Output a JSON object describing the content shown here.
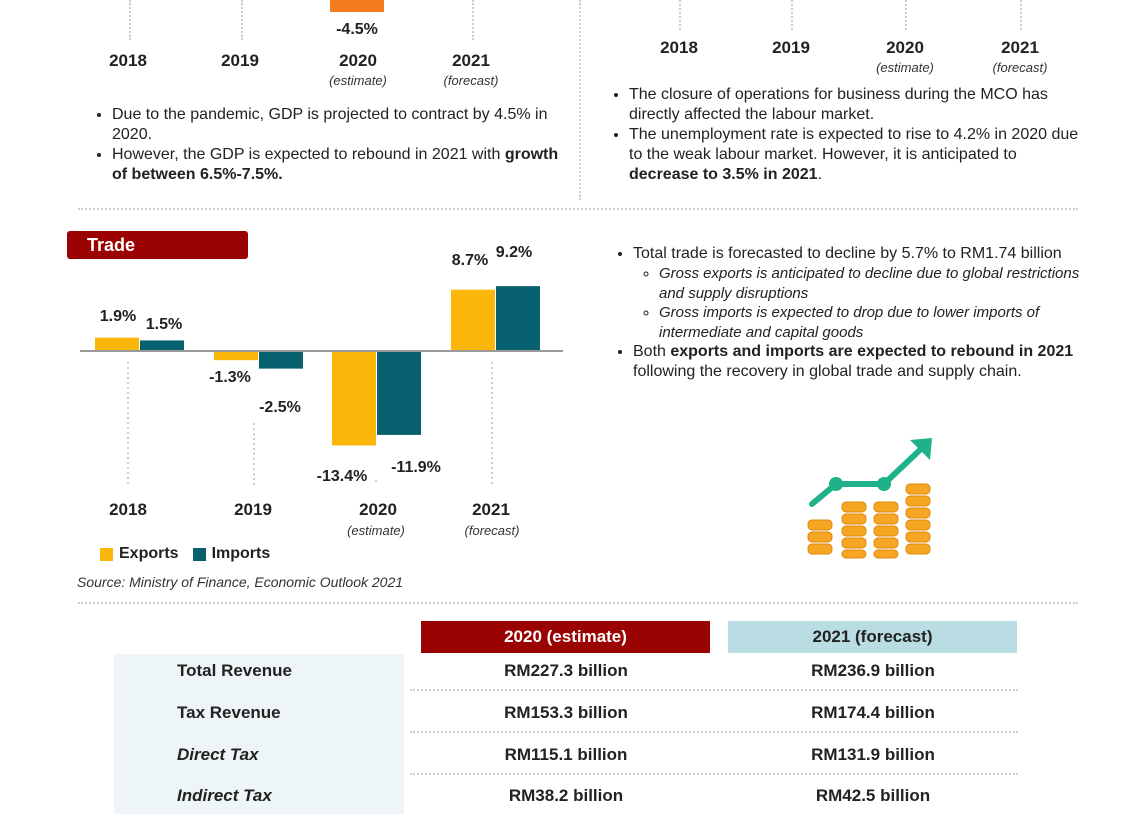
{
  "gdp_section": {
    "top_bar_label": "-4.5%",
    "years": [
      "2018",
      "2019",
      "2020",
      "2021"
    ],
    "year_notes": [
      "",
      "",
      "(estimate)",
      "(forecast)"
    ],
    "bullet_1": "Due to the pandemic, GDP is projected to contract by 4.5% in 2020.",
    "bullet_2_pre": "However, the GDP is expected to rebound in 2021 with ",
    "bullet_2_bold": "growth of between 6.5%-7.5%."
  },
  "labour_section": {
    "years": [
      "2018",
      "2019",
      "2020",
      "2021"
    ],
    "year_notes": [
      "",
      "",
      "(estimate)",
      "(forecast)"
    ],
    "bullet_1": "The closure of operations for business during the MCO has directly affected the labour market.",
    "bullet_2_pre": "The unemployment rate is expected to rise to 4.2% in 2020 due to the weak labour market. However, it is anticipated to ",
    "bullet_2_bold": "decrease to 3.5% in 2021",
    "bullet_2_post": "."
  },
  "trade_section": {
    "title": "Trade",
    "bullet_1": "Total trade is forecasted to decline by 5.7% to RM1.74 billion",
    "sub_1": "Gross exports is anticipated to decline due to global restrictions and supply disruptions",
    "sub_2": "Gross imports is expected to drop due to lower imports of intermediate and capital goods",
    "bullet_2_pre": "Both ",
    "bullet_2_bold": "exports and imports are expected to rebound in 2021",
    "bullet_2_post": " following the recovery in global trade and supply chain.",
    "year_notes": [
      "",
      "",
      "(estimate)",
      "(forecast)"
    ],
    "source": "Source: Ministry of Finance, Economic Outlook 2021"
  },
  "chart_data": {
    "type": "bar",
    "title": "Trade",
    "categories": [
      "2018",
      "2019",
      "2020",
      "2021"
    ],
    "series": [
      {
        "name": "Exports",
        "color": "#fbb60a",
        "values": [
          1.9,
          -1.3,
          -13.4,
          8.7
        ],
        "labels": [
          "1.9%",
          "-1.3%",
          "-13.4%",
          "8.7%"
        ]
      },
      {
        "name": "Imports",
        "color": "#07606d",
        "values": [
          1.5,
          -2.5,
          -11.9,
          9.2
        ],
        "labels": [
          "1.5%",
          "-2.5%",
          "-11.9%",
          "9.2%"
        ]
      }
    ],
    "legend": "bottom-left",
    "grid": false
  },
  "revenue_table": {
    "headers": [
      "2020 (estimate)",
      "2021 (forecast)"
    ],
    "rows": [
      {
        "label": "Total Revenue",
        "v2020": "RM227.3 billion",
        "v2021": "RM236.9 billion"
      },
      {
        "label": "Tax Revenue",
        "v2020": "RM153.3 billion",
        "v2021": "RM174.4 billion"
      },
      {
        "label": "Direct Tax",
        "v2020": "RM115.1 billion",
        "v2021": "RM131.9 billion"
      },
      {
        "label": "Indirect Tax",
        "v2020": "RM38.2 billion",
        "v2021": "RM42.5 billion"
      }
    ]
  },
  "colors": {
    "accent_red": "#9b0303",
    "accent_teal": "#07606d",
    "accent_yellow": "#fbb60a",
    "accent_orange": "#f57c1f",
    "header_light": "#b9dde2"
  },
  "icons": {
    "growth": "growth-chart-coins-icon"
  }
}
